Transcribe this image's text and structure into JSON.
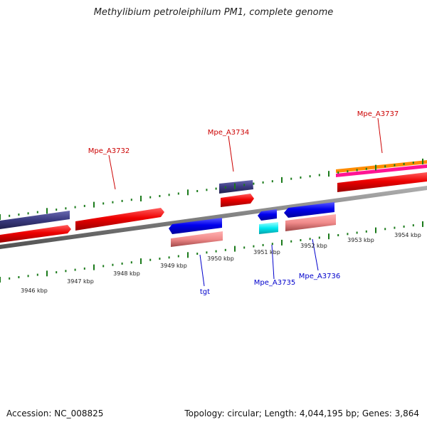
{
  "title": "Methylibium petroleiphilum PM1, complete genome",
  "accession_text": "Accession: NC_008825",
  "topology_text": "Topology: circular; Length: 4,044,195 bp; Genes: 3,864",
  "scale_labels": [
    "3946 kbp",
    "3947 kbp",
    "3948 kbp",
    "3949 kbp",
    "3950 kbp",
    "3951 kbp",
    "3952 kbp",
    "3953 kbp",
    "3954 kbp"
  ],
  "gene_labels": [
    {
      "text": "Mpe_A3732",
      "strand": "forward",
      "color": "#cc0000"
    },
    {
      "text": "Mpe_A3734",
      "strand": "forward",
      "color": "#cc0000"
    },
    {
      "text": "Mpe_A3737",
      "strand": "forward",
      "color": "#cc0000"
    },
    {
      "text": "tgt",
      "strand": "reverse",
      "color": "#0000cc"
    },
    {
      "text": "Mpe_A3735",
      "strand": "reverse",
      "color": "#0000cc"
    },
    {
      "text": "Mpe_A3736",
      "strand": "reverse",
      "color": "#0000cc"
    }
  ],
  "colors": {
    "forward_gene": "#ee0000",
    "reverse_gene": "#0000ee",
    "cds_purple": "#3a3a80",
    "rrna_pink": "#f08a8a",
    "trna_cyan": "#00e8f0",
    "orange": "#ff8c00",
    "magenta": "#ff1493",
    "tick_green": "#1a7a1a",
    "backbone": "#808080"
  }
}
